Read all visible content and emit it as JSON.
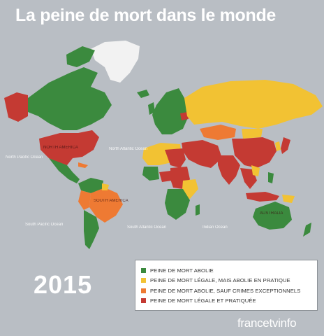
{
  "title": "La peine de mort dans le monde",
  "year": "2015",
  "brand": "francetvinfo",
  "colors": {
    "ocean": "#b9bec4",
    "abolished": "#3b8a3e",
    "legal_not_practiced": "#f2c233",
    "abolished_except_exceptional": "#ee7a33",
    "legal_and_practiced": "#c43a33",
    "no_data": "#f2f2f2"
  },
  "legend": [
    {
      "label": "PEINE DE MORT ABOLIE",
      "color": "#3b8a3e"
    },
    {
      "label": "PEINE DE MORT LÉGALE, MAIS ABOLIE EN PRATIQUE",
      "color": "#f2c233"
    },
    {
      "label": "PEINE DE MORT ABOLIE, SAUF CRIMES EXCEPTIONNELS",
      "color": "#ee7a33"
    },
    {
      "label": "PEINE DE MORT LÉGALE ET PRATIQUÉE",
      "color": "#c43a33"
    }
  ],
  "map_labels": {
    "north_america": "NORTH AMERICA",
    "south_america": "SOUTH AMERICA",
    "australia": "AUSTRALIA",
    "north_pacific": "North Pacific Ocean",
    "north_atlantic": "North Atlantic Ocean",
    "south_pacific": "South Pacific Ocean",
    "south_atlantic": "South Atlantic Ocean",
    "indian_ocean": "Indian Ocean"
  }
}
